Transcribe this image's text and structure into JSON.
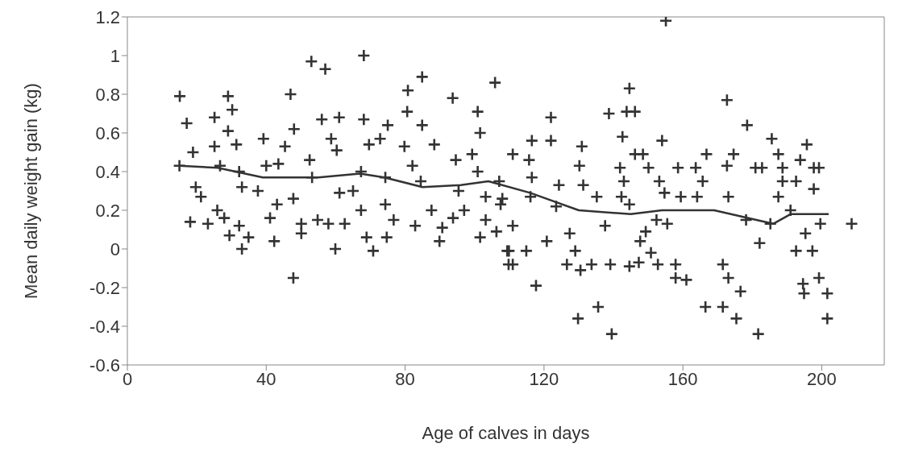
{
  "chart_data": {
    "type": "scatter",
    "xlabel": "Age of calves in days",
    "ylabel": "Mean daily weight gain (kg)",
    "xlim": [
      0,
      218
    ],
    "xticks": [
      0,
      40,
      80,
      120,
      160,
      200
    ],
    "ylim": [
      -0.6,
      1.2
    ],
    "yticks": [
      -0.6,
      -0.4,
      -0.2,
      0,
      0.2,
      0.4,
      0.6,
      0.8,
      1,
      1.2
    ],
    "series": [
      {
        "color": "#333333",
        "marker": "cross",
        "x": [
          15.1,
          17.1,
          29.0,
          30.2,
          25.1,
          29.0,
          47.0,
          48.0,
          53.0,
          57.0,
          68.1,
          56,
          61,
          68.1,
          75,
          80.8,
          84.9,
          80.6,
          84.9,
          93.7,
          100.9,
          105.9,
          15,
          18.9,
          19.7,
          21.2,
          18.1,
          23.2,
          25.1,
          26.7,
          25.9,
          27.9,
          29.4,
          31.4,
          32.2,
          33,
          34.9,
          32.2,
          33,
          39.2,
          37.6,
          42.3,
          41.1,
          40,
          45.4,
          43.5,
          43.1,
          47.8,
          47.8,
          50.1,
          50.1,
          52.5,
          53.2,
          54.8,
          57.9,
          58.7,
          60.3,
          59.9,
          61.1,
          62.6,
          65,
          67.3,
          68.9,
          70.8,
          67.3,
          69.6,
          72.8,
          74.3,
          74.3,
          74.7,
          76.7,
          79.8,
          82.1,
          82.9,
          84.5,
          88.4,
          87.6,
          89.9,
          90.7,
          94.6,
          95.4,
          93.8,
          97,
          101.6,
          101.6,
          100.9,
          103.2,
          103.2,
          106.3,
          109.4,
          109.8,
          99.3,
          108,
          122,
          122,
          116.5,
          111,
          115.7,
          116.5,
          107.1,
          116.1,
          107.5,
          111,
          109.9,
          111,
          117.7,
          120.8,
          114.9,
          124.3,
          123.5,
          127.4,
          126.6,
          129,
          130.5,
          129.8,
          130.9,
          130.2,
          131.3,
          135.2,
          133.7,
          135.6,
          137.6,
          139.1,
          139.5,
          138.7,
          143.8,
          146.2,
          144.6,
          142.6,
          141.9,
          143,
          142.3,
          144.6,
          146.2,
          148.5,
          144.6,
          147.3,
          150.1,
          149.3,
          150.8,
          152.8,
          154,
          155.1,
          153.2,
          154.7,
          155.5,
          157.9,
          157.9,
          158.6,
          159.4,
          161,
          163.7,
          165.7,
          164.1,
          166.8,
          166.5,
          171.5,
          172.7,
          172.7,
          174.6,
          173.1,
          171.5,
          173.1,
          176.6,
          175.4,
          178.5,
          180.9,
          182.8,
          181.7,
          182.1,
          185.6,
          187.5,
          188.7,
          188.7,
          192.6,
          187.5,
          191,
          192.6,
          195.7,
          193.8,
          197.7,
          199.2,
          197.7,
          195.3,
          197.3,
          194.6,
          194.9,
          199.2,
          201.6,
          201.6,
          199.6,
          208.6,
          147.7,
          152.4,
          178.2,
          185.2
        ],
        "values": [
          0.79,
          0.65,
          0.79,
          0.72,
          0.68,
          0.61,
          0.8,
          0.62,
          0.97,
          0.93,
          1.0,
          0.67,
          0.68,
          0.67,
          0.64,
          0.82,
          0.89,
          0.71,
          0.64,
          0.78,
          0.71,
          0.86,
          0.43,
          0.5,
          0.32,
          0.27,
          0.14,
          0.13,
          0.53,
          0.43,
          0.2,
          0.16,
          0.07,
          0.54,
          0.12,
          0.0,
          0.06,
          0.4,
          0.32,
          0.57,
          0.3,
          0.04,
          0.16,
          0.43,
          0.53,
          0.44,
          0.23,
          -0.15,
          0.26,
          0.08,
          0.13,
          0.46,
          0.37,
          0.15,
          0.13,
          0.57,
          0.51,
          0.0,
          0.29,
          0.13,
          0.3,
          0.2,
          0.06,
          -0.01,
          0.4,
          0.54,
          0.57,
          0.37,
          0.23,
          0.06,
          0.15,
          0.53,
          0.43,
          0.12,
          0.35,
          0.54,
          0.2,
          0.04,
          0.11,
          0.46,
          0.3,
          0.16,
          0.2,
          0.6,
          0.06,
          0.4,
          0.27,
          0.15,
          0.09,
          -0.01,
          -0.08,
          0.49,
          0.26,
          0.68,
          0.56,
          0.56,
          0.49,
          0.46,
          0.37,
          0.35,
          0.27,
          0.23,
          0.12,
          -0.01,
          -0.08,
          -0.19,
          0.04,
          -0.01,
          0.33,
          0.22,
          0.08,
          -0.08,
          -0.01,
          -0.11,
          -0.36,
          0.53,
          0.43,
          0.33,
          0.27,
          -0.08,
          -0.3,
          0.12,
          -0.08,
          -0.44,
          0.7,
          0.71,
          0.71,
          0.83,
          0.58,
          0.42,
          0.35,
          0.27,
          0.23,
          0.49,
          0.49,
          -0.09,
          -0.07,
          0.42,
          0.09,
          -0.02,
          -0.08,
          0.56,
          1.18,
          0.35,
          0.29,
          0.13,
          -0.08,
          -0.15,
          0.42,
          0.27,
          -0.16,
          0.42,
          0.35,
          0.27,
          0.49,
          -0.3,
          -0.3,
          0.77,
          0.43,
          0.49,
          0.27,
          -0.08,
          -0.15,
          -0.22,
          -0.36,
          0.64,
          0.42,
          0.42,
          -0.44,
          0.03,
          0.57,
          0.49,
          0.42,
          0.35,
          0.35,
          0.27,
          0.2,
          -0.01,
          0.54,
          0.46,
          0.42,
          0.42,
          0.31,
          0.08,
          -0.01,
          -0.18,
          -0.23,
          -0.15,
          -0.23,
          -0.36,
          0.13,
          0.13,
          0.04,
          0.15,
          0.15,
          0.13
        ]
      },
      {
        "type": "line",
        "color": "#333333",
        "marker": "none",
        "line_style": "solid",
        "x": [
          15,
          26,
          39,
          55,
          67,
          74,
          85,
          96,
          104,
          116,
          130,
          145,
          154,
          169,
          186,
          191,
          202
        ],
        "values": [
          0.43,
          0.42,
          0.37,
          0.37,
          0.39,
          0.37,
          0.32,
          0.33,
          0.35,
          0.29,
          0.2,
          0.18,
          0.2,
          0.2,
          0.13,
          0.18,
          0.18
        ]
      }
    ]
  }
}
